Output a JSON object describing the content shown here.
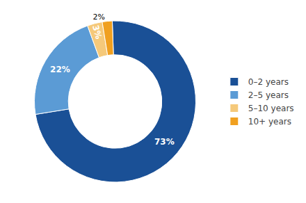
{
  "chart_data": {
    "type": "donut",
    "categories": [
      "0–2 years",
      "2–5 years",
      "5–10 years",
      "10+ years"
    ],
    "values": [
      73,
      22,
      3,
      2
    ],
    "value_labels": [
      "73%",
      "22%",
      "3%",
      "2%"
    ],
    "colors": [
      "#1a5096",
      "#5b9bd5",
      "#f5c97a",
      "#f0a020"
    ],
    "data_labels": true,
    "legend": "right"
  }
}
